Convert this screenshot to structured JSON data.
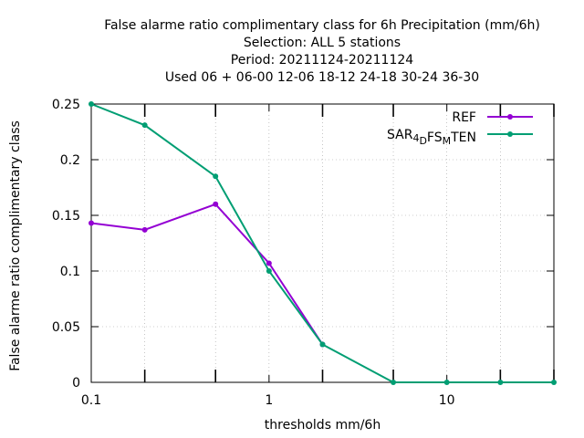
{
  "chart_data": {
    "type": "line",
    "title_lines": [
      "False alarme ratio complimentary class  for 6h Precipitation (mm/6h)",
      "Selection: ALL      5 stations",
      "Period: 20211124-20211124",
      "Used  06  + 06-00 12-06 18-12 24-18 30-24 36-30"
    ],
    "xlabel": "thresholds mm/6h",
    "ylabel": "False alarme ratio complimentary class",
    "x_scale": "log",
    "xlim": [
      0.1,
      40
    ],
    "ylim": [
      0,
      0.25
    ],
    "x_ticks": [
      {
        "value": 0.1,
        "label": "0.1"
      },
      {
        "value": 1,
        "label": "1"
      },
      {
        "value": 10,
        "label": "10"
      }
    ],
    "x_minor_ticks": [
      0.2,
      0.5,
      2,
      5,
      20,
      40
    ],
    "y_ticks": [
      {
        "value": 0,
        "label": "0"
      },
      {
        "value": 0.05,
        "label": "0.05"
      },
      {
        "value": 0.1,
        "label": "0.1"
      },
      {
        "value": 0.15,
        "label": "0.15"
      },
      {
        "value": 0.2,
        "label": "0.2"
      },
      {
        "value": 0.25,
        "label": "0.25"
      }
    ],
    "grid": true,
    "legend_position": "top-right",
    "x": [
      0.1,
      0.2,
      0.5,
      1,
      2,
      5,
      10,
      20,
      40
    ],
    "series": [
      {
        "name": "REF",
        "legend_parts": [
          {
            "text": "REF"
          }
        ],
        "color": "#9400d3",
        "values": [
          0.143,
          0.137,
          0.16,
          0.107,
          0.034,
          null,
          null,
          null,
          null
        ]
      },
      {
        "name": "SAR4DFSMTEN",
        "legend_parts": [
          {
            "text": "SAR"
          },
          {
            "text": "4",
            "sub": true
          },
          {
            "text": "D",
            "sub": true
          },
          {
            "text": "FS"
          },
          {
            "text": "M",
            "sub": true
          },
          {
            "text": "TEN"
          }
        ],
        "color": "#009e73",
        "values": [
          0.25,
          0.231,
          0.185,
          0.1,
          0.034,
          0.0,
          0.0,
          0.0,
          0.0
        ]
      }
    ]
  }
}
